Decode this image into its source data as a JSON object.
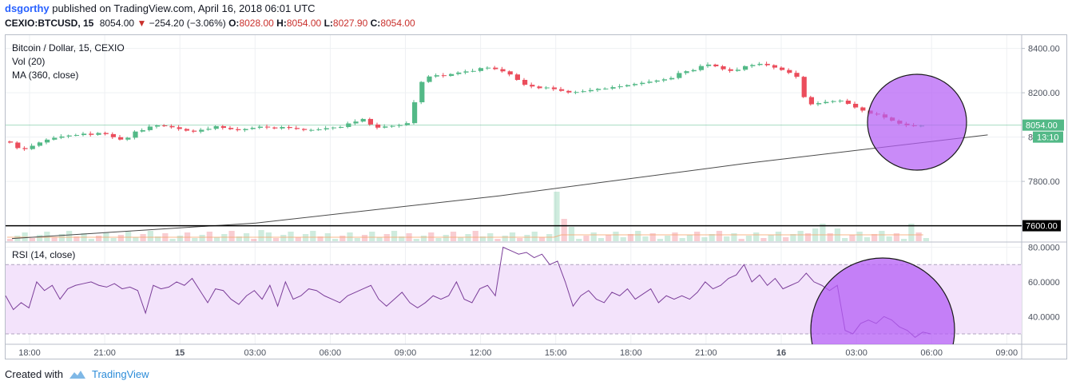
{
  "header": {
    "user": "dsgorthy",
    "published": "published on TradingView.com, April 16, 2018 06:01 UTC",
    "symbol": "CEXIO:BTCUSD, 15",
    "last": "8054.00",
    "change": "−254.20 (−3.06%)",
    "o_label": "O:",
    "o_val": "8028.00",
    "h_label": "H:",
    "h_val": "8054.00",
    "l_label": "L:",
    "l_val": "8027.90",
    "c_label": "C:",
    "c_val": "8054.00"
  },
  "legend": {
    "title": "Bitcoin / Dollar, 15, CEXIO",
    "vol": "Vol (20)",
    "ma": "MA (360, close)",
    "rsi": "RSI (14, close)"
  },
  "footer": {
    "created": "Created with",
    "brand": "TradingView"
  },
  "colors": {
    "up": "#53b987",
    "down": "#eb4d5c",
    "circle": "#b45ef5",
    "rsi_band": "#f3e3fb",
    "rsi_line": "#7b3e99"
  },
  "chart_data": [
    {
      "type": "candlestick",
      "title": "Bitcoin / Dollar, 15, CEXIO",
      "x_tick_labels": [
        "18:00",
        "21:00",
        "15",
        "03:00",
        "06:00",
        "09:00",
        "12:00",
        "15:00",
        "18:00",
        "21:00",
        "16",
        "03:00",
        "06:00",
        "09:00"
      ],
      "y_tick_labels": [
        "8400.00",
        "8200.00",
        "8000.00",
        "7800.00",
        "7600.00"
      ],
      "ylim": [
        7530,
        8460
      ],
      "last_price_label": "8054.00",
      "countdown_label": "13:10",
      "horizontal_line": 7600,
      "horizontal_line_label": "7600.00",
      "close_points": [
        [
          0,
          7980
        ],
        [
          0.5,
          7950
        ],
        [
          1,
          7935
        ],
        [
          2,
          7960
        ],
        [
          3,
          7985
        ],
        [
          4,
          8000
        ],
        [
          5,
          8010
        ],
        [
          6,
          8015
        ],
        [
          7,
          8005
        ],
        [
          8,
          8020
        ],
        [
          9,
          8000
        ],
        [
          10,
          7985
        ],
        [
          11,
          8030
        ],
        [
          12,
          8040
        ],
        [
          13,
          8050
        ],
        [
          14,
          8045
        ],
        [
          15,
          8035
        ],
        [
          16,
          8025
        ],
        [
          17,
          8040
        ],
        [
          18,
          8045
        ],
        [
          19,
          8035
        ],
        [
          20,
          8030
        ],
        [
          21,
          8040
        ],
        [
          22,
          8050
        ],
        [
          23,
          8045
        ],
        [
          24,
          8040
        ],
        [
          25,
          8035
        ],
        [
          26,
          8030
        ],
        [
          27,
          8035
        ],
        [
          28,
          8045
        ],
        [
          29,
          8050
        ],
        [
          30,
          8060
        ],
        [
          31,
          8080
        ],
        [
          32,
          8040
        ],
        [
          33,
          8050
        ],
        [
          34,
          8055
        ],
        [
          35,
          8070
        ],
        [
          36,
          8240
        ],
        [
          37,
          8280
        ],
        [
          38,
          8275
        ],
        [
          39,
          8290
        ],
        [
          40,
          8300
        ],
        [
          41,
          8305
        ],
        [
          42,
          8310
        ],
        [
          43,
          8300
        ],
        [
          44,
          8280
        ],
        [
          45,
          8240
        ],
        [
          46,
          8230
        ],
        [
          47,
          8220
        ],
        [
          48,
          8210
        ],
        [
          49,
          8200
        ],
        [
          50,
          8205
        ],
        [
          51,
          8215
        ],
        [
          52,
          8225
        ],
        [
          53,
          8220
        ],
        [
          54,
          8230
        ],
        [
          55,
          8240
        ],
        [
          56,
          8250
        ],
        [
          57,
          8260
        ],
        [
          58,
          8270
        ],
        [
          59,
          8290
        ],
        [
          60,
          8300
        ],
        [
          61,
          8330
        ],
        [
          62,
          8320
        ],
        [
          63,
          8300
        ],
        [
          64,
          8310
        ],
        [
          65,
          8320
        ],
        [
          66,
          8330
        ],
        [
          67,
          8315
        ],
        [
          68,
          8300
        ],
        [
          69,
          8280
        ],
        [
          70,
          8140
        ],
        [
          71,
          8150
        ],
        [
          72,
          8160
        ],
        [
          73,
          8165
        ],
        [
          74,
          8140
        ],
        [
          75,
          8120
        ],
        [
          76,
          8100
        ],
        [
          77,
          8080
        ],
        [
          78,
          8060
        ],
        [
          79,
          8050
        ],
        [
          80,
          8054
        ]
      ],
      "ma_points": [
        [
          0,
          7542
        ],
        [
          20,
          7612
        ],
        [
          40,
          7735
        ],
        [
          60,
          7880
        ],
        [
          80,
          8010
        ]
      ]
    },
    {
      "type": "bar",
      "title": "Vol (20)",
      "note": "volume histogram, no axis labels"
    },
    {
      "type": "line",
      "title": "RSI (14, close)",
      "y_tick_labels": [
        "80.0000",
        "60.0000",
        "40.0000"
      ],
      "ylim": [
        24,
        83
      ],
      "band": [
        30,
        70
      ],
      "values": [
        52,
        44,
        48,
        45,
        60,
        55,
        58,
        50,
        56,
        58,
        59,
        60,
        58,
        57,
        59,
        56,
        57,
        55,
        42,
        58,
        56,
        57,
        60,
        58,
        62,
        55,
        48,
        56,
        55,
        50,
        47,
        52,
        55,
        50,
        58,
        46,
        60,
        50,
        52,
        56,
        55,
        52,
        50,
        48,
        52,
        54,
        56,
        58,
        50,
        46,
        50,
        54,
        48,
        45,
        48,
        52,
        50,
        52,
        60,
        50,
        48,
        56,
        58,
        52,
        80,
        78,
        76,
        77,
        74,
        76,
        70,
        72,
        60,
        46,
        52,
        55,
        50,
        48,
        54,
        52,
        56,
        50,
        53,
        56,
        48,
        52,
        50,
        52,
        50,
        54,
        60,
        56,
        58,
        62,
        64,
        70,
        60,
        64,
        58,
        62,
        56,
        58,
        60,
        65,
        60,
        58,
        55,
        58,
        32,
        30,
        36,
        38,
        36,
        40,
        38,
        34,
        32,
        28,
        31,
        30
      ]
    }
  ]
}
